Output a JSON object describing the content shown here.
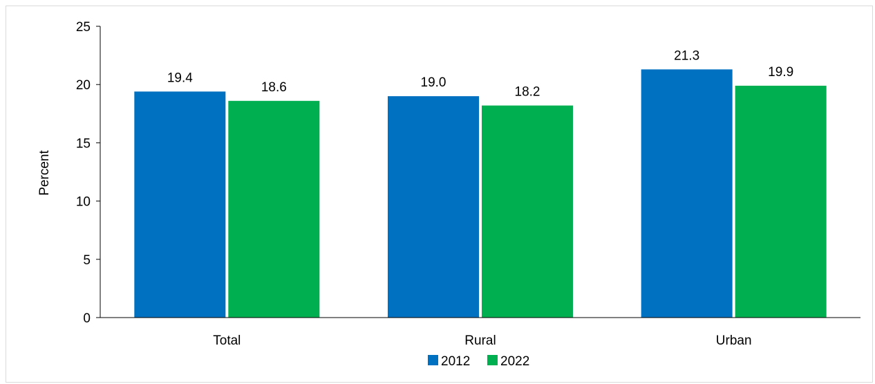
{
  "chart_data": {
    "type": "bar",
    "categories": [
      "Total",
      "Rural",
      "Urban"
    ],
    "series": [
      {
        "name": "2012",
        "values": [
          19.4,
          19.0,
          21.3
        ],
        "labels": [
          "19.4",
          "19.0",
          "21.3"
        ],
        "color": "#0070c0"
      },
      {
        "name": "2022",
        "values": [
          18.6,
          18.2,
          19.9
        ],
        "labels": [
          "18.6",
          "18.2",
          "19.9"
        ],
        "color": "#00b050"
      }
    ],
    "ylabel": "Percent",
    "xlabel": "",
    "ylim": [
      0,
      25
    ],
    "yticks": [
      0,
      5,
      10,
      15,
      20,
      25
    ],
    "grid": false,
    "legend_position": "bottom"
  }
}
